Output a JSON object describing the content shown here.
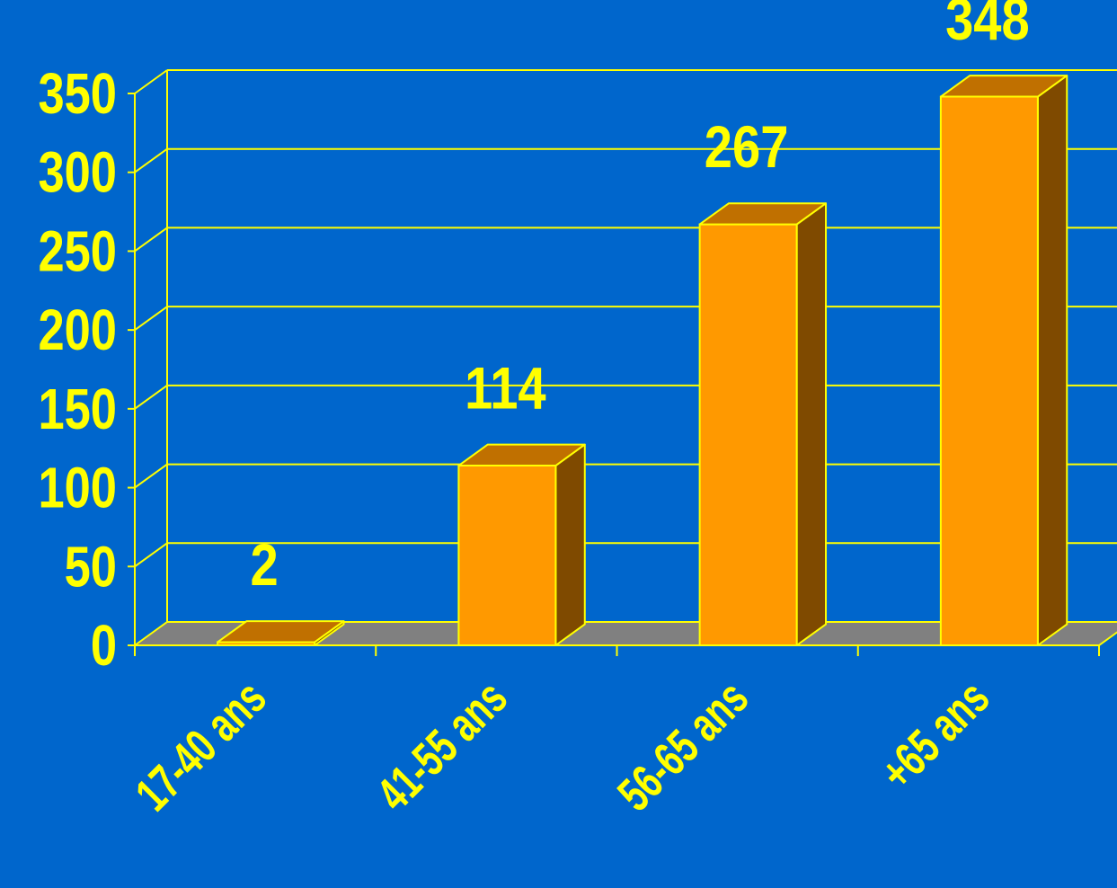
{
  "chart_data": {
    "type": "bar",
    "title": "",
    "xlabel": "",
    "ylabel": "",
    "categories": [
      "17-40 ans",
      "41-55 ans",
      "56-65 ans",
      "+65 ans"
    ],
    "values": [
      2,
      114,
      267,
      348
    ],
    "data_labels": [
      "2",
      "114",
      "267",
      "348"
    ],
    "ylim": [
      0,
      350
    ],
    "yticks": [
      "0",
      "50",
      "100",
      "150",
      "200",
      "250",
      "300",
      "350"
    ],
    "grid": true,
    "legend": "none",
    "colors": {
      "background": "#0066CC",
      "bar_front": "#FF9900",
      "bar_top": "#C07000",
      "bar_side": "#7F4A00",
      "floor": "#808080",
      "lines": "#FFFF00",
      "text": "#FFFF00"
    }
  }
}
